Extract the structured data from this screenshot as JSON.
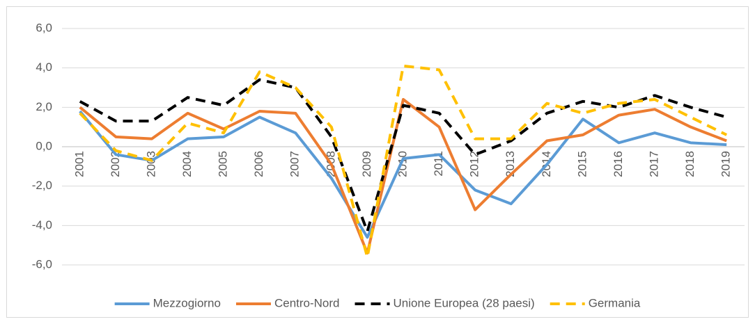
{
  "chart_data": {
    "type": "line",
    "categories": [
      "2001",
      "2002",
      "2003",
      "2004",
      "2005",
      "2006",
      "2007",
      "2008",
      "2009",
      "2010",
      "2011",
      "2012",
      "2013",
      "2014",
      "2015",
      "2016",
      "2017",
      "2018",
      "2019"
    ],
    "series": [
      {
        "name": "Mezzogiorno",
        "color": "#5B9BD5",
        "dash": "solid",
        "values": [
          1.8,
          -0.4,
          -0.7,
          0.4,
          0.5,
          1.5,
          0.7,
          -1.6,
          -4.6,
          -0.6,
          -0.4,
          -2.2,
          -2.9,
          -0.9,
          1.4,
          0.2,
          0.7,
          0.2,
          0.1
        ]
      },
      {
        "name": "Centro-Nord",
        "color": "#ED7D31",
        "dash": "solid",
        "values": [
          2.0,
          0.5,
          0.4,
          1.7,
          0.9,
          1.8,
          1.7,
          -0.9,
          -5.4,
          2.4,
          1.0,
          -3.2,
          -1.4,
          0.3,
          0.6,
          1.6,
          1.9,
          1.0,
          0.3
        ]
      },
      {
        "name": "Unione Europea (28 paesi)",
        "color": "#000000",
        "dash": "dashed",
        "values": [
          2.3,
          1.3,
          1.3,
          2.5,
          2.1,
          3.4,
          3.0,
          0.5,
          -4.3,
          2.1,
          1.7,
          -0.4,
          0.3,
          1.7,
          2.3,
          2.0,
          2.6,
          2.0,
          1.5
        ]
      },
      {
        "name": "Germania",
        "color": "#FFC000",
        "dash": "dashed",
        "values": [
          1.7,
          -0.2,
          -0.7,
          1.2,
          0.7,
          3.8,
          3.0,
          1.0,
          -5.6,
          4.1,
          3.9,
          0.4,
          0.4,
          2.2,
          1.7,
          2.2,
          2.4,
          1.5,
          0.6
        ]
      }
    ],
    "ylim": [
      -6,
      6
    ],
    "yticks": [
      {
        "value": -6,
        "label": "-6,0"
      },
      {
        "value": -4,
        "label": "-4,0"
      },
      {
        "value": -2,
        "label": "-2,0"
      },
      {
        "value": 0,
        "label": "0,0"
      },
      {
        "value": 2,
        "label": "2,0"
      },
      {
        "value": 4,
        "label": "4,0"
      },
      {
        "value": 6,
        "label": "6,0"
      }
    ],
    "grid": true,
    "legend": "bottom"
  }
}
